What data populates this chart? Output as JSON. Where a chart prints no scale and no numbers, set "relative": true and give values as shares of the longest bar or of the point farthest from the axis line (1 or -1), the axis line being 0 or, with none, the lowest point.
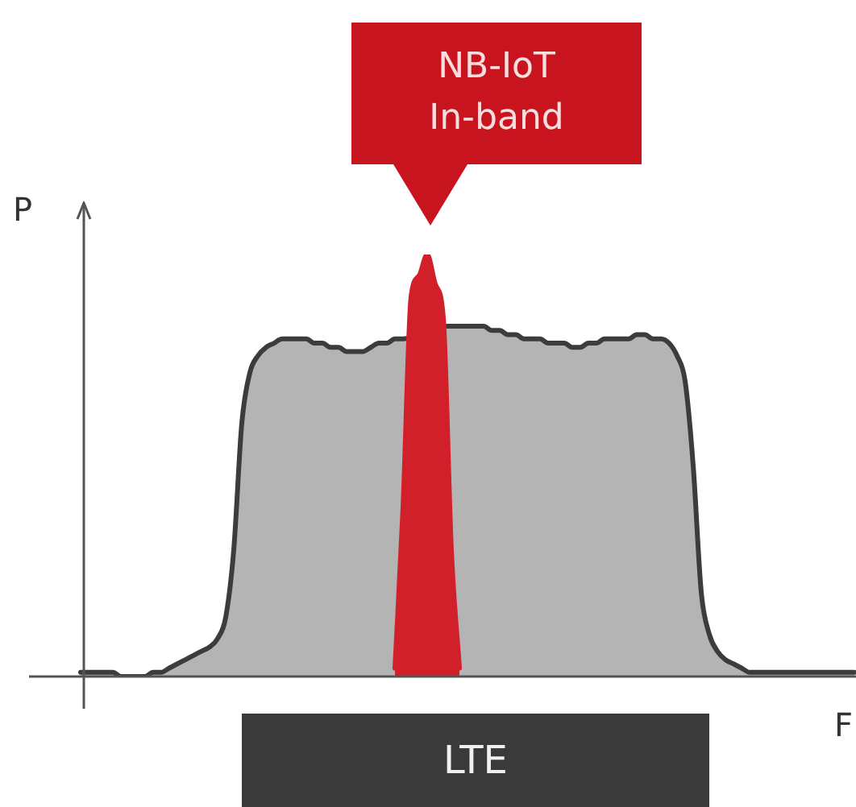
{
  "chart_data": {
    "type": "area",
    "relative": true,
    "xlabel": "F",
    "ylabel": "P",
    "legend": false,
    "tick_labels": false,
    "categories": [
      null,
      null,
      null,
      null,
      null,
      null,
      null,
      null,
      null,
      null,
      null,
      null,
      null,
      null,
      null,
      null,
      null,
      null,
      null,
      null,
      null,
      null,
      null,
      null,
      null,
      null,
      null,
      null,
      null,
      null,
      null,
      null,
      null,
      null,
      null,
      null,
      null,
      null,
      null,
      null,
      null,
      null,
      null,
      null,
      null,
      null,
      null,
      null,
      null,
      null,
      null,
      null,
      null,
      null,
      null,
      null,
      null,
      null,
      null,
      null,
      null,
      null,
      null,
      null,
      null,
      null,
      null,
      null,
      null,
      null,
      null,
      null,
      null,
      null,
      null,
      null,
      null,
      null,
      null,
      null,
      null,
      null,
      null,
      null,
      null,
      null,
      null,
      null,
      null,
      null,
      null,
      null,
      null,
      null,
      null,
      null,
      null
    ],
    "series": [
      {
        "color": "#b4b4b4",
        "values": [
          0.01,
          0.01,
          0.01,
          0.01,
          0.01,
          0,
          0,
          0,
          0,
          0.01,
          0.01,
          0.02,
          0.03,
          0.04,
          0.05,
          0.06,
          0.07,
          0.09,
          0.14,
          0.3,
          0.6,
          0.72,
          0.76,
          0.78,
          0.79,
          0.8,
          0.8,
          0.8,
          0.8,
          0.79,
          0.79,
          0.78,
          0.78,
          0.77,
          0.77,
          0.77,
          0.78,
          0.79,
          0.79,
          0.8,
          0.8,
          null,
          null,
          null,
          null,
          0.83,
          0.83,
          0.83,
          0.83,
          0.83,
          0.83,
          0.82,
          0.82,
          0.81,
          0.81,
          0.8,
          0.8,
          0.8,
          0.79,
          0.79,
          0.79,
          0.78,
          0.78,
          0.79,
          0.79,
          0.8,
          0.8,
          0.8,
          0.8,
          0.81,
          0.81,
          0.8,
          0.8,
          0.79,
          0.76,
          0.7,
          0.5,
          0.2,
          0.1,
          0.06,
          0.04,
          0.03,
          0.02,
          0.01,
          0.01,
          0.01,
          0.01,
          0.01,
          0.01,
          0.01,
          0.01,
          0.01,
          0.01,
          0.01,
          0.01,
          0.01,
          0.01
        ]
      },
      {
        "color": "#d2202a",
        "values": [
          null,
          null,
          null,
          null,
          null,
          null,
          null,
          null,
          null,
          null,
          null,
          null,
          null,
          null,
          null,
          null,
          null,
          null,
          null,
          null,
          null,
          null,
          null,
          null,
          null,
          null,
          null,
          null,
          null,
          null,
          null,
          null,
          null,
          null,
          null,
          null,
          null,
          null,
          null,
          0.02,
          0.4,
          0.9,
          0.95,
          1,
          0.93,
          0.85,
          0.3,
          0.02,
          null,
          null,
          null,
          null,
          null,
          null,
          null,
          null,
          null,
          null,
          null,
          null,
          null,
          null,
          null,
          null,
          null,
          null,
          null,
          null,
          null,
          null,
          null,
          null,
          null,
          null,
          null,
          null,
          null,
          null,
          null,
          null,
          null,
          null,
          null,
          null,
          null,
          null,
          null,
          null,
          null,
          null,
          null,
          null,
          null,
          null,
          null,
          null,
          null
        ]
      }
    ],
    "annotations": [
      "NB-IoT In-band",
      "LTE"
    ]
  }
}
